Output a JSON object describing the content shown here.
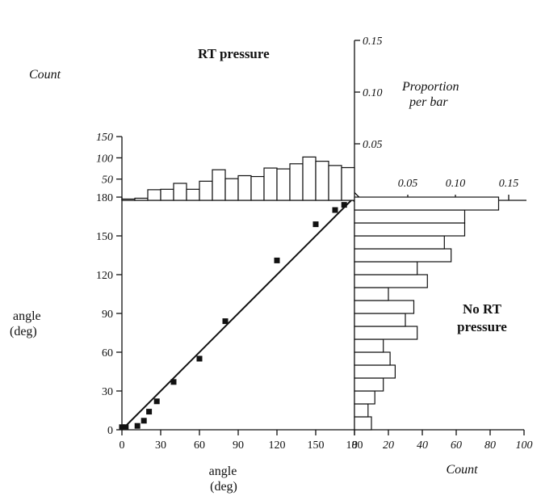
{
  "chart_data": {
    "type": "scatter-histogram",
    "top_histogram": {
      "title": "RT pressure",
      "ylabel": "Count",
      "y_right_label": [
        "Proportion",
        "per bar"
      ],
      "count_ticks": [
        50,
        100,
        150
      ],
      "proportion_ticks": [
        "0.05",
        "0.10",
        "0.15"
      ],
      "ylim": [
        0,
        150
      ],
      "bin_width_deg": 10,
      "values": [
        3,
        5,
        25,
        26,
        40,
        26,
        45,
        72,
        51,
        58,
        56,
        76,
        74,
        86,
        102,
        92,
        82,
        77
      ]
    },
    "right_histogram": {
      "title": [
        "No RT",
        "pressure"
      ],
      "xlabel": "Count",
      "count_ticks": [
        0,
        20,
        40,
        60,
        80,
        100
      ],
      "proportion_ticks": [
        "0.05",
        "0.10",
        "0.15"
      ],
      "xlim": [
        0,
        100
      ],
      "bin_width_deg": 10,
      "values": [
        10,
        8,
        12,
        17,
        24,
        21,
        17,
        37,
        30,
        35,
        20,
        43,
        37,
        57,
        53,
        65,
        65,
        85
      ]
    },
    "scatter": {
      "xlabel": [
        "angle",
        "(deg)"
      ],
      "ylabel": [
        "angle",
        "(deg)"
      ],
      "xlim": [
        0,
        180
      ],
      "ylim": [
        0,
        180
      ],
      "x_ticks": [
        0,
        30,
        60,
        90,
        120,
        150,
        180
      ],
      "y_ticks": [
        0,
        30,
        60,
        90,
        120,
        150,
        180
      ],
      "x": [
        0,
        3,
        12,
        17,
        21,
        27,
        40,
        60,
        80,
        120,
        150,
        165,
        172
      ],
      "y": [
        2,
        2,
        3,
        7,
        14,
        22,
        37,
        55,
        84,
        131,
        159,
        170,
        174
      ],
      "reference_line": [
        [
          0,
          0
        ],
        [
          180,
          180
        ]
      ]
    }
  }
}
